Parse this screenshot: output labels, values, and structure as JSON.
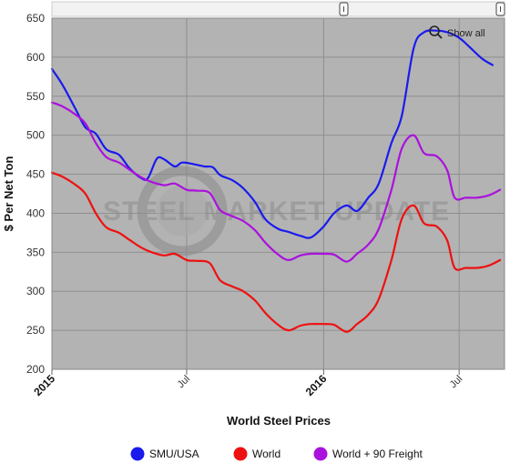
{
  "chart_data": {
    "type": "line",
    "title": "",
    "xlabel": "World Steel Prices",
    "ylabel": "$ Per Net Ton",
    "ylim": [
      200,
      650
    ],
    "yticks": [
      200,
      250,
      300,
      350,
      400,
      450,
      500,
      550,
      600,
      650
    ],
    "xlim": [
      "2015-01-01",
      "2016-08-31"
    ],
    "xticks": [
      {
        "date": "2015-01-01",
        "label": "2015",
        "major": true
      },
      {
        "date": "2015-07-01",
        "label": "Jul",
        "major": false
      },
      {
        "date": "2016-01-01",
        "label": "2016",
        "major": true
      },
      {
        "date": "2016-07-01",
        "label": "Jul",
        "major": false
      }
    ],
    "grid": true,
    "legend_position": "bottom",
    "background_color": "#b3b3b3",
    "watermark": "STEEL MARKET UPDATE",
    "zoom_label": "Show all",
    "series": [
      {
        "name": "SMU/USA",
        "color": "#1a1aee",
        "points": [
          [
            "2015-01-01",
            585
          ],
          [
            "2015-01-15",
            565
          ],
          [
            "2015-02-01",
            535
          ],
          [
            "2015-02-15",
            510
          ],
          [
            "2015-03-01",
            502
          ],
          [
            "2015-03-15",
            482
          ],
          [
            "2015-04-01",
            475
          ],
          [
            "2015-04-15",
            458
          ],
          [
            "2015-05-01",
            445
          ],
          [
            "2015-05-10",
            445
          ],
          [
            "2015-05-22",
            470
          ],
          [
            "2015-06-01",
            469
          ],
          [
            "2015-06-15",
            460
          ],
          [
            "2015-06-25",
            465
          ],
          [
            "2015-07-10",
            463
          ],
          [
            "2015-07-25",
            460
          ],
          [
            "2015-08-05",
            459
          ],
          [
            "2015-08-15",
            449
          ],
          [
            "2015-09-01",
            442
          ],
          [
            "2015-09-15",
            432
          ],
          [
            "2015-10-01",
            414
          ],
          [
            "2015-10-15",
            392
          ],
          [
            "2015-11-01",
            380
          ],
          [
            "2015-11-15",
            376
          ],
          [
            "2015-12-01",
            371
          ],
          [
            "2015-12-15",
            369
          ],
          [
            "2016-01-01",
            383
          ],
          [
            "2016-01-15",
            400
          ],
          [
            "2016-02-01",
            410
          ],
          [
            "2016-02-15",
            403
          ],
          [
            "2016-03-01",
            420
          ],
          [
            "2016-03-15",
            438
          ],
          [
            "2016-04-01",
            490
          ],
          [
            "2016-04-15",
            525
          ],
          [
            "2016-05-01",
            612
          ],
          [
            "2016-05-15",
            632
          ],
          [
            "2016-06-01",
            634
          ],
          [
            "2016-06-15",
            632
          ],
          [
            "2016-07-01",
            625
          ],
          [
            "2016-07-15",
            613
          ],
          [
            "2016-08-01",
            598
          ],
          [
            "2016-08-15",
            590
          ]
        ]
      },
      {
        "name": "World",
        "color": "#ee1111",
        "points": [
          [
            "2015-01-01",
            452
          ],
          [
            "2015-01-15",
            447
          ],
          [
            "2015-02-01",
            437
          ],
          [
            "2015-02-15",
            425
          ],
          [
            "2015-03-01",
            400
          ],
          [
            "2015-03-15",
            382
          ],
          [
            "2015-04-01",
            375
          ],
          [
            "2015-04-15",
            366
          ],
          [
            "2015-05-01",
            356
          ],
          [
            "2015-05-15",
            350
          ],
          [
            "2015-06-01",
            346
          ],
          [
            "2015-06-15",
            348
          ],
          [
            "2015-07-01",
            340
          ],
          [
            "2015-07-15",
            339
          ],
          [
            "2015-08-01",
            336
          ],
          [
            "2015-08-15",
            314
          ],
          [
            "2015-09-01",
            306
          ],
          [
            "2015-09-15",
            300
          ],
          [
            "2015-10-01",
            288
          ],
          [
            "2015-10-15",
            272
          ],
          [
            "2015-11-01",
            257
          ],
          [
            "2015-11-15",
            250
          ],
          [
            "2015-12-01",
            256
          ],
          [
            "2015-12-15",
            258
          ],
          [
            "2016-01-01",
            258
          ],
          [
            "2016-01-15",
            257
          ],
          [
            "2016-02-01",
            248
          ],
          [
            "2016-02-15",
            258
          ],
          [
            "2016-03-01",
            270
          ],
          [
            "2016-03-15",
            290
          ],
          [
            "2016-04-01",
            340
          ],
          [
            "2016-04-15",
            393
          ],
          [
            "2016-05-01",
            410
          ],
          [
            "2016-05-15",
            387
          ],
          [
            "2016-06-01",
            383
          ],
          [
            "2016-06-15",
            365
          ],
          [
            "2016-06-25",
            330
          ],
          [
            "2016-07-10",
            330
          ],
          [
            "2016-07-25",
            330
          ],
          [
            "2016-08-10",
            333
          ],
          [
            "2016-08-25",
            340
          ]
        ]
      },
      {
        "name": "World + 90 Freight",
        "color": "#aa11dd",
        "points": [
          [
            "2015-01-01",
            542
          ],
          [
            "2015-01-15",
            537
          ],
          [
            "2015-02-01",
            527
          ],
          [
            "2015-02-15",
            515
          ],
          [
            "2015-03-01",
            490
          ],
          [
            "2015-03-15",
            472
          ],
          [
            "2015-04-01",
            465
          ],
          [
            "2015-04-15",
            456
          ],
          [
            "2015-05-01",
            446
          ],
          [
            "2015-05-15",
            440
          ],
          [
            "2015-06-01",
            436
          ],
          [
            "2015-06-15",
            438
          ],
          [
            "2015-07-01",
            430
          ],
          [
            "2015-07-15",
            429
          ],
          [
            "2015-08-01",
            426
          ],
          [
            "2015-08-15",
            404
          ],
          [
            "2015-09-01",
            396
          ],
          [
            "2015-09-15",
            390
          ],
          [
            "2015-10-01",
            378
          ],
          [
            "2015-10-15",
            362
          ],
          [
            "2015-11-01",
            347
          ],
          [
            "2015-11-15",
            340
          ],
          [
            "2015-12-01",
            346
          ],
          [
            "2015-12-15",
            348
          ],
          [
            "2016-01-01",
            348
          ],
          [
            "2016-01-15",
            347
          ],
          [
            "2016-02-01",
            338
          ],
          [
            "2016-02-15",
            348
          ],
          [
            "2016-03-01",
            360
          ],
          [
            "2016-03-15",
            380
          ],
          [
            "2016-04-01",
            430
          ],
          [
            "2016-04-15",
            483
          ],
          [
            "2016-05-01",
            500
          ],
          [
            "2016-05-15",
            477
          ],
          [
            "2016-06-01",
            473
          ],
          [
            "2016-06-15",
            455
          ],
          [
            "2016-06-25",
            420
          ],
          [
            "2016-07-10",
            420
          ],
          [
            "2016-07-25",
            420
          ],
          [
            "2016-08-10",
            423
          ],
          [
            "2016-08-25",
            430
          ]
        ]
      }
    ]
  }
}
